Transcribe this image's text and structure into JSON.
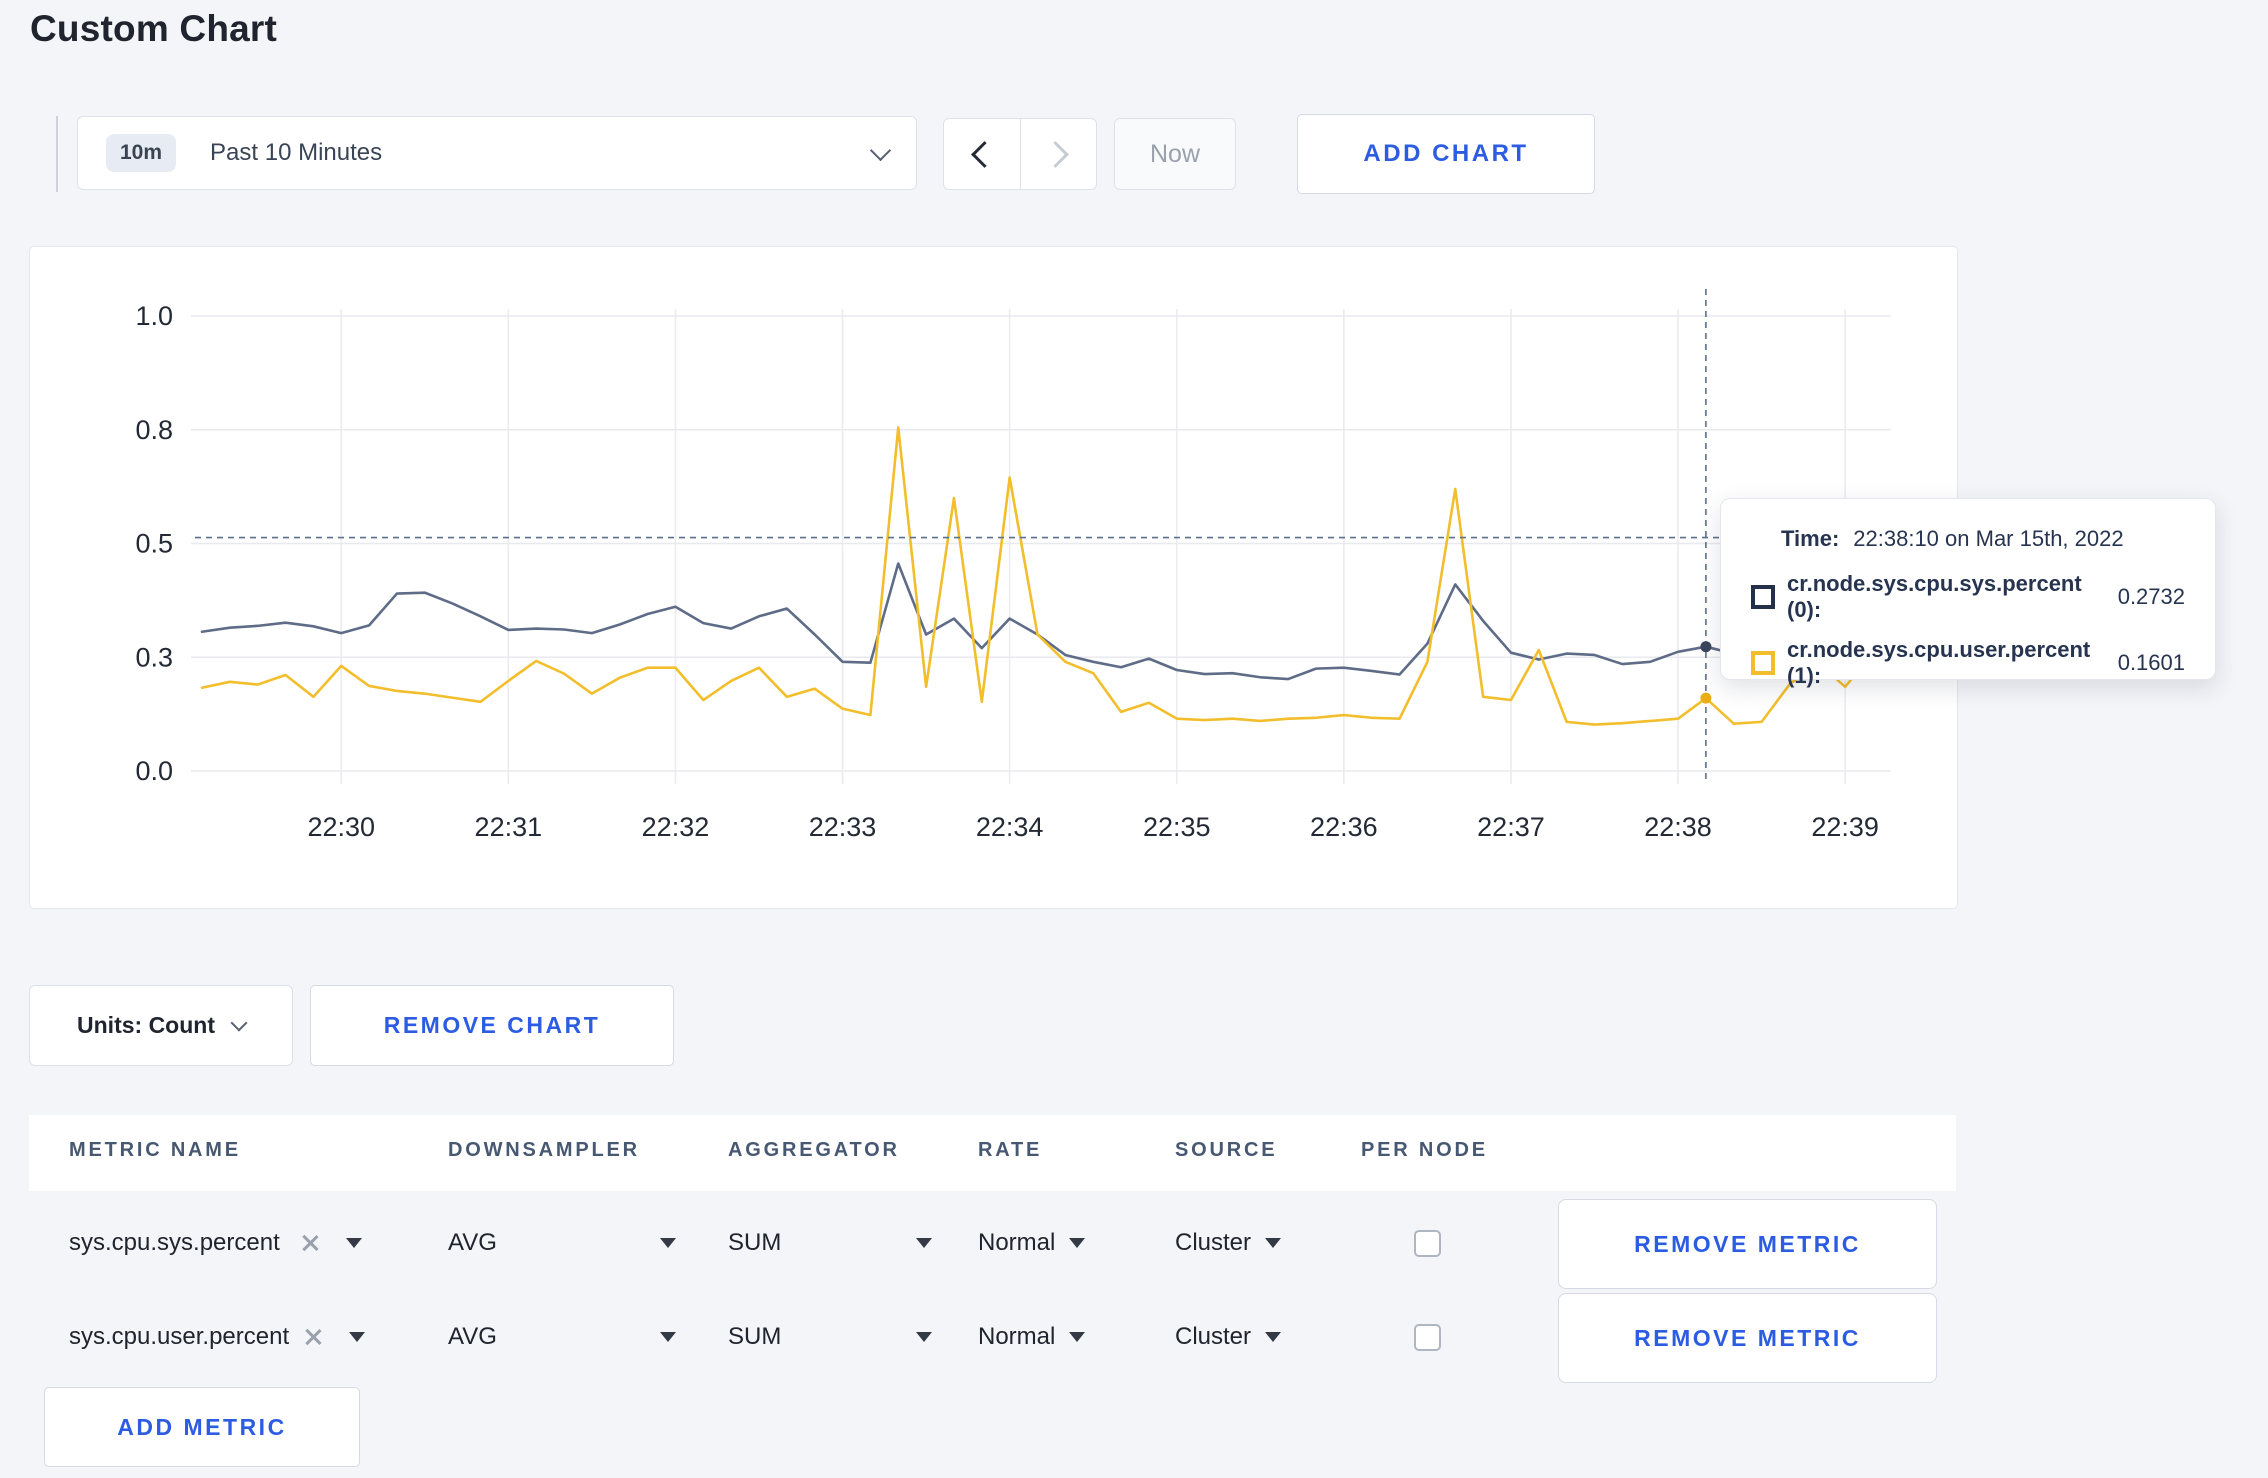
{
  "page": {
    "title": "Custom Chart"
  },
  "toolbar": {
    "range_badge": "10m",
    "range_label": "Past 10 Minutes",
    "now_label": "Now",
    "add_chart_label": "ADD CHART"
  },
  "chart_data": {
    "type": "line",
    "title": "",
    "xlabel": "",
    "ylabel": "",
    "ylim": [
      0,
      1
    ],
    "grid": true,
    "x_start_label": "22:29:10",
    "sample_interval_seconds": 10,
    "duration_seconds": 600,
    "xticks": {
      "first_offset_seconds": 50,
      "interval_seconds": 60,
      "labels": [
        "22:30",
        "22:31",
        "22:32",
        "22:33",
        "22:34",
        "22:35",
        "22:36",
        "22:37",
        "22:38",
        "22:39"
      ]
    },
    "yticks": [
      {
        "value": 0,
        "label": "0.0"
      },
      {
        "value": 0.25,
        "label": "0.3"
      },
      {
        "value": 0.5,
        "label": "0.5"
      },
      {
        "value": 0.75,
        "label": "0.8"
      },
      {
        "value": 1,
        "label": "1.0"
      }
    ],
    "series": [
      {
        "name": "cr.node.sys.cpu.sys.percent",
        "color": "#5f6c87",
        "dot_color": "#39455e",
        "values": [
          0.306,
          0.315,
          0.319,
          0.326,
          0.318,
          0.303,
          0.32,
          0.39,
          0.392,
          0.368,
          0.34,
          0.31,
          0.313,
          0.311,
          0.303,
          0.322,
          0.345,
          0.361,
          0.325,
          0.313,
          0.34,
          0.357,
          0.3,
          0.24,
          0.238,
          0.456,
          0.3,
          0.335,
          0.27,
          0.335,
          0.3,
          0.255,
          0.24,
          0.228,
          0.247,
          0.222,
          0.213,
          0.215,
          0.206,
          0.202,
          0.225,
          0.227,
          0.22,
          0.212,
          0.28,
          0.41,
          0.33,
          0.26,
          0.245,
          0.258,
          0.255,
          0.235,
          0.24,
          0.262,
          0.2732,
          0.258,
          0.252,
          0.26,
          0.268,
          0.272,
          0.285
        ]
      },
      {
        "name": "cr.node.sys.cpu.user.percent",
        "color": "#f2be2c",
        "dot_color": "#e8ae14",
        "values": [
          0.183,
          0.196,
          0.19,
          0.211,
          0.163,
          0.231,
          0.187,
          0.176,
          0.17,
          0.161,
          0.152,
          0.198,
          0.242,
          0.214,
          0.17,
          0.205,
          0.227,
          0.227,
          0.156,
          0.198,
          0.227,
          0.163,
          0.181,
          0.137,
          0.123,
          0.755,
          0.185,
          0.6,
          0.152,
          0.645,
          0.3,
          0.24,
          0.215,
          0.13,
          0.15,
          0.115,
          0.112,
          0.115,
          0.11,
          0.115,
          0.117,
          0.123,
          0.117,
          0.115,
          0.24,
          0.62,
          0.163,
          0.156,
          0.266,
          0.108,
          0.102,
          0.105,
          0.11,
          0.115,
          0.1601,
          0.104,
          0.108,
          0.19,
          0.24,
          0.185,
          0.26
        ]
      }
    ],
    "crosshair": {
      "time_offset_seconds": 540,
      "time_label": "22:38:10",
      "y_value": 0.513,
      "points": [
        {
          "series": 0,
          "value": 0.2732
        },
        {
          "series": 1,
          "value": 0.1601
        }
      ]
    },
    "legend_position": "tooltip"
  },
  "tooltip": {
    "time_label": "Time:",
    "time_value": "22:38:10 on Mar 15th, 2022",
    "rows": [
      {
        "swatch": "#242f49",
        "name": "cr.node.sys.cpu.sys.percent (0):",
        "value": "0.2732"
      },
      {
        "swatch": "#f2be2c",
        "name": "cr.node.sys.cpu.user.percent (1):",
        "value": "0.1601"
      }
    ]
  },
  "controls": {
    "units_label": "Units: Count",
    "remove_chart_label": "REMOVE CHART"
  },
  "table": {
    "headers": [
      "METRIC NAME",
      "DOWNSAMPLER",
      "AGGREGATOR",
      "RATE",
      "SOURCE",
      "PER NODE"
    ],
    "rows": [
      {
        "metric": "sys.cpu.sys.percent",
        "downsampler": "AVG",
        "aggregator": "SUM",
        "rate": "Normal",
        "source": "Cluster",
        "per_node_checked": false
      },
      {
        "metric": "sys.cpu.user.percent",
        "downsampler": "AVG",
        "aggregator": "SUM",
        "rate": "Normal",
        "source": "Cluster",
        "per_node_checked": false
      }
    ],
    "remove_metric_label": "REMOVE METRIC",
    "add_metric_label": "ADD METRIC"
  }
}
